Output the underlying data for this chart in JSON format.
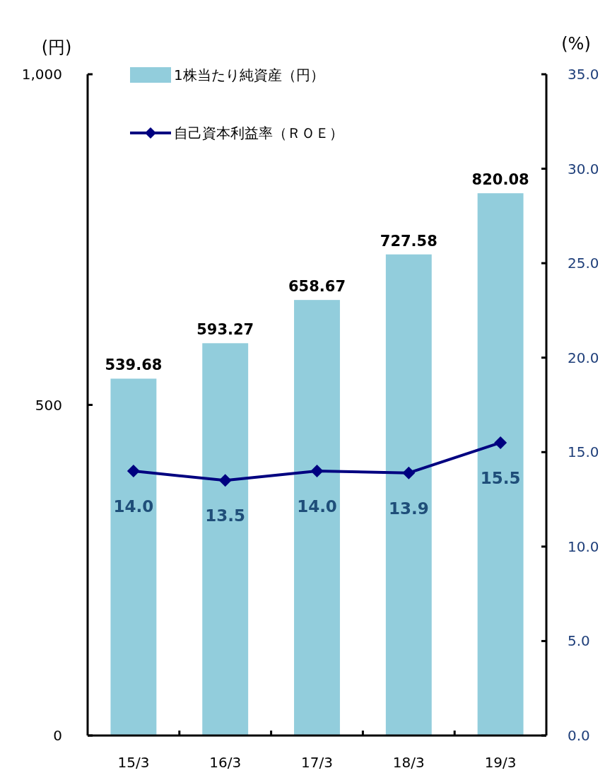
{
  "chart_data": {
    "type": "bar",
    "categories": [
      "15/3",
      "16/3",
      "17/3",
      "18/3",
      "19/3"
    ],
    "ylabel": "(円)",
    "y2label": "(%)",
    "ylim": [
      0,
      1000
    ],
    "yticks": [
      0,
      500,
      {
        "value": 1000,
        "label": "1,000"
      }
    ],
    "y2lim": [
      0,
      35
    ],
    "y2ticks": [
      {
        "value": 0,
        "label": "0.0"
      },
      {
        "value": 5,
        "label": "5.0"
      },
      {
        "value": 10,
        "label": "10.0"
      },
      {
        "value": 15,
        "label": "15.0"
      },
      {
        "value": 20,
        "label": "20.0"
      },
      {
        "value": 25,
        "label": "25.0"
      },
      {
        "value": 30,
        "label": "30.0"
      },
      {
        "value": 35,
        "label": "35.0"
      }
    ],
    "legend": "top left",
    "grid": false,
    "series": [
      {
        "name": "1株当たり純資産（円）",
        "color": "#92cddc",
        "values": [
          539.68,
          593.27,
          658.67,
          727.58,
          820.08
        ],
        "value_labels": [
          "539.68",
          "593.27",
          "658.67",
          "727.58",
          "820.08"
        ]
      },
      {
        "name": "自己資本利益率（ＲＯＥ）",
        "type": "line",
        "axis": "y2",
        "color": "#000080",
        "marker": "diamond",
        "line_style": "solid",
        "values": [
          14.0,
          13.5,
          14.0,
          13.9,
          15.5
        ],
        "value_labels": [
          "14.0",
          "13.5",
          "14.0",
          "13.9",
          "15.5"
        ]
      }
    ]
  }
}
